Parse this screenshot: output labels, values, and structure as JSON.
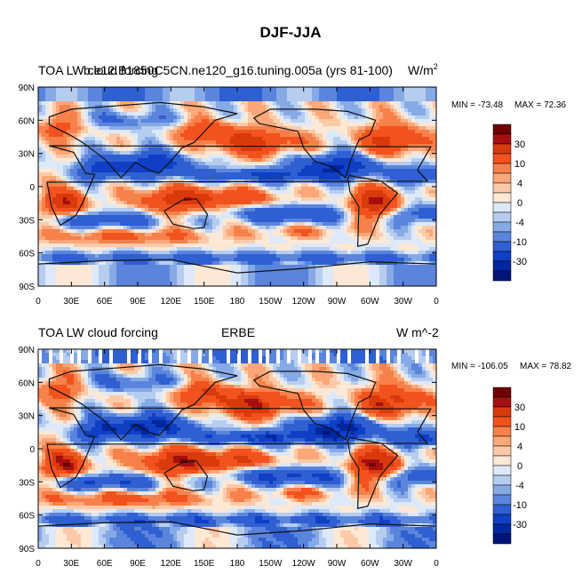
{
  "figure": {
    "title": "DJF-JJA"
  },
  "colorbar_levels": [
    "30",
    "10",
    "4",
    "0",
    "-4",
    "-10",
    "-30"
  ],
  "colorbar_colors": [
    "#6e0000",
    "#a50f0f",
    "#d93a0c",
    "#f2521d",
    "#f7814a",
    "#fba779",
    "#fccaa9",
    "#fde8d5",
    "#dde9f8",
    "#b6cdf0",
    "#86aae6",
    "#5b85dc",
    "#2f5fd1",
    "#0f3fc4",
    "#0026a0",
    "#001577"
  ],
  "map_axes": {
    "lat_ticks": [
      "90N",
      "60N",
      "30N",
      "0",
      "30S",
      "60S",
      "90S"
    ],
    "lon_ticks": [
      "0",
      "30E",
      "60E",
      "90E",
      "120E",
      "150E",
      "180",
      "150W",
      "120W",
      "90W",
      "60W",
      "30W",
      "0"
    ]
  },
  "panels": [
    {
      "left_title": "TOA LW cloud forcing",
      "center_title": "b.e12.B1850C5CN.ne120_g16.tuning.005a (yrs 81-100)",
      "units_text": "W/m",
      "units_sup": "2",
      "min_text": "MIN = -73.48",
      "max_text": "MAX =  72.36"
    },
    {
      "left_title": "TOA LW cloud forcing",
      "center_title": "ERBE",
      "units_text": "W m^-2",
      "units_sup": "",
      "min_text": "MIN = -106.05",
      "max_text": "MAX =  78.82"
    }
  ],
  "chart_data": [
    {
      "type": "heatmap",
      "title": "TOA LW cloud forcing",
      "subtitle": "b.e12.B1850C5CN.ne120_g16.tuning.005a (yrs 81-100)",
      "units": "W/m^2",
      "min": -73.48,
      "max": 72.36,
      "x_ticks": [
        "0",
        "30E",
        "60E",
        "90E",
        "120E",
        "150E",
        "180",
        "150W",
        "120W",
        "90W",
        "60W",
        "30W",
        "0"
      ],
      "y_ticks": [
        "90N",
        "60N",
        "30N",
        "0",
        "30S",
        "60S",
        "90S"
      ],
      "xlim": [
        0,
        360
      ],
      "ylim": [
        -90,
        90
      ],
      "colorbar_levels": [
        30,
        10,
        4,
        0,
        -4,
        -10,
        -30
      ]
    },
    {
      "type": "heatmap",
      "title": "TOA LW cloud forcing",
      "subtitle": "ERBE",
      "units": "W m^-2",
      "min": -106.05,
      "max": 78.82,
      "x_ticks": [
        "0",
        "30E",
        "60E",
        "90E",
        "120E",
        "150E",
        "180",
        "150W",
        "120W",
        "90W",
        "60W",
        "30W",
        "0"
      ],
      "y_ticks": [
        "90N",
        "60N",
        "30N",
        "0",
        "30S",
        "60S",
        "90S"
      ],
      "xlim": [
        0,
        360
      ],
      "ylim": [
        -90,
        90
      ],
      "colorbar_levels": [
        30,
        10,
        4,
        0,
        -4,
        -10,
        -30
      ]
    }
  ]
}
